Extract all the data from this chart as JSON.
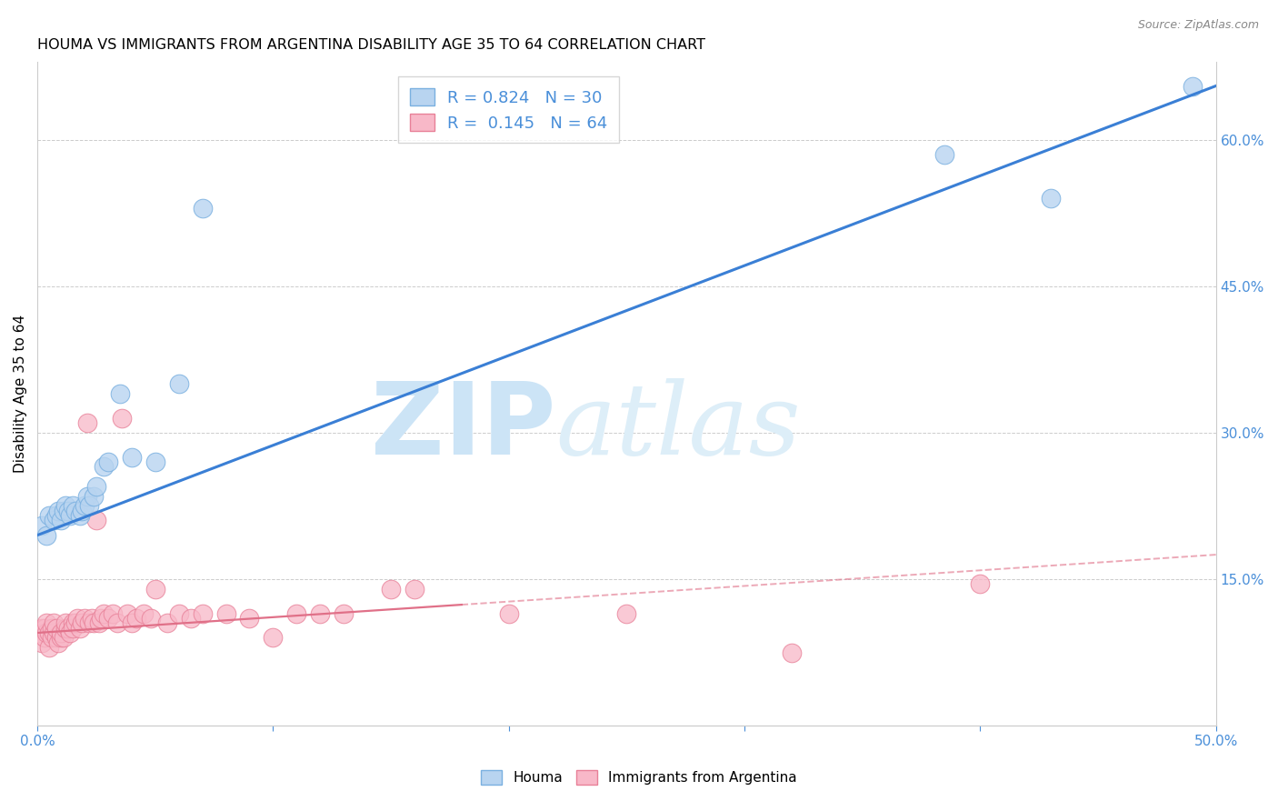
{
  "title": "HOUMA VS IMMIGRANTS FROM ARGENTINA DISABILITY AGE 35 TO 64 CORRELATION CHART",
  "source": "Source: ZipAtlas.com",
  "ylabel": "Disability Age 35 to 64",
  "xlim": [
    0.0,
    0.5
  ],
  "ylim": [
    0.0,
    0.68
  ],
  "xticks": [
    0.0,
    0.1,
    0.2,
    0.3,
    0.4,
    0.5
  ],
  "xtick_labels": [
    "0.0%",
    "",
    "",
    "",
    "",
    "50.0%"
  ],
  "yticks_right": [
    0.15,
    0.3,
    0.45,
    0.6
  ],
  "ytick_labels_right": [
    "15.0%",
    "30.0%",
    "45.0%",
    "60.0%"
  ],
  "houma_R": 0.824,
  "houma_N": 30,
  "arg_R": 0.145,
  "arg_N": 64,
  "houma_color": "#b8d4f0",
  "houma_edge_color": "#7ab0e0",
  "arg_color": "#f8b8c8",
  "arg_edge_color": "#e88098",
  "line_houma_color": "#3a7fd5",
  "line_arg_color": "#e07088",
  "legend_text_color": "#4a8fd9",
  "watermark_zip": "ZIP",
  "watermark_atlas": "atlas",
  "watermark_color": "#cce4f6",
  "houma_x": [
    0.002,
    0.004,
    0.005,
    0.007,
    0.008,
    0.009,
    0.01,
    0.011,
    0.012,
    0.013,
    0.014,
    0.015,
    0.016,
    0.018,
    0.019,
    0.02,
    0.021,
    0.022,
    0.024,
    0.025,
    0.028,
    0.03,
    0.035,
    0.04,
    0.05,
    0.06,
    0.07,
    0.385,
    0.43,
    0.49
  ],
  "houma_y": [
    0.205,
    0.195,
    0.215,
    0.21,
    0.215,
    0.22,
    0.21,
    0.22,
    0.225,
    0.22,
    0.215,
    0.225,
    0.22,
    0.215,
    0.22,
    0.225,
    0.235,
    0.225,
    0.235,
    0.245,
    0.265,
    0.27,
    0.34,
    0.275,
    0.27,
    0.35,
    0.53,
    0.585,
    0.54,
    0.655
  ],
  "arg_x": [
    0.001,
    0.002,
    0.002,
    0.003,
    0.003,
    0.004,
    0.004,
    0.005,
    0.005,
    0.006,
    0.006,
    0.007,
    0.007,
    0.008,
    0.008,
    0.009,
    0.01,
    0.01,
    0.011,
    0.012,
    0.012,
    0.013,
    0.014,
    0.015,
    0.015,
    0.016,
    0.017,
    0.018,
    0.019,
    0.02,
    0.021,
    0.022,
    0.023,
    0.024,
    0.025,
    0.026,
    0.027,
    0.028,
    0.03,
    0.032,
    0.034,
    0.036,
    0.038,
    0.04,
    0.042,
    0.045,
    0.048,
    0.05,
    0.055,
    0.06,
    0.065,
    0.07,
    0.08,
    0.09,
    0.1,
    0.11,
    0.12,
    0.13,
    0.15,
    0.16,
    0.2,
    0.25,
    0.32,
    0.4
  ],
  "arg_y": [
    0.095,
    0.085,
    0.1,
    0.09,
    0.1,
    0.095,
    0.105,
    0.08,
    0.095,
    0.09,
    0.1,
    0.095,
    0.105,
    0.09,
    0.1,
    0.085,
    0.09,
    0.095,
    0.09,
    0.1,
    0.105,
    0.1,
    0.095,
    0.105,
    0.1,
    0.105,
    0.11,
    0.1,
    0.105,
    0.11,
    0.31,
    0.105,
    0.11,
    0.105,
    0.21,
    0.105,
    0.11,
    0.115,
    0.11,
    0.115,
    0.105,
    0.315,
    0.115,
    0.105,
    0.11,
    0.115,
    0.11,
    0.14,
    0.105,
    0.115,
    0.11,
    0.115,
    0.115,
    0.11,
    0.09,
    0.115,
    0.115,
    0.115,
    0.14,
    0.14,
    0.115,
    0.115,
    0.075,
    0.145
  ],
  "line_houma_x0": 0.0,
  "line_houma_y0": 0.195,
  "line_houma_x1": 0.5,
  "line_houma_y1": 0.655,
  "line_arg_x0": 0.0,
  "line_arg_y0": 0.095,
  "line_arg_x1": 0.5,
  "line_arg_y1": 0.175
}
